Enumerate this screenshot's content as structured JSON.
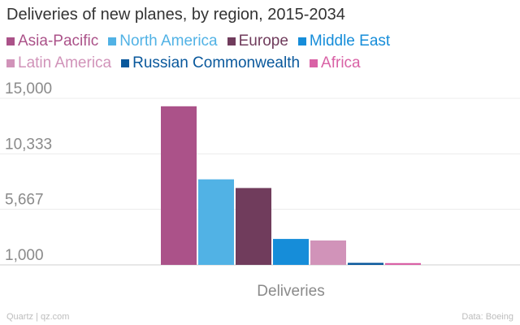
{
  "chart_data": {
    "type": "bar",
    "title": "Deliveries of new planes, by region, 2015-2034",
    "categories": [
      "Deliveries"
    ],
    "series": [
      {
        "name": "Asia-Pacific",
        "values": [
          14330
        ],
        "color": "#ab5289"
      },
      {
        "name": "North America",
        "values": [
          8190
        ],
        "color": "#51b2e5"
      },
      {
        "name": "Europe",
        "values": [
          7460
        ],
        "color": "#703c5c"
      },
      {
        "name": "Middle East",
        "values": [
          3180
        ],
        "color": "#168dd9"
      },
      {
        "name": "Latin America",
        "values": [
          3050
        ],
        "color": "#d193b9"
      },
      {
        "name": "Russian Commonwealth",
        "values": [
          1170
        ],
        "color": "#09589c"
      },
      {
        "name": "Africa",
        "values": [
          1150
        ],
        "color": "#d962a6"
      }
    ],
    "yticks": [
      "1,000",
      "5,667",
      "10,333",
      "15,000"
    ],
    "ylim": [
      1000,
      15000
    ],
    "grid": true,
    "legend": "top"
  },
  "footer": {
    "source_left": "Quartz | qz.com",
    "source_right": "Data: Boeing"
  }
}
